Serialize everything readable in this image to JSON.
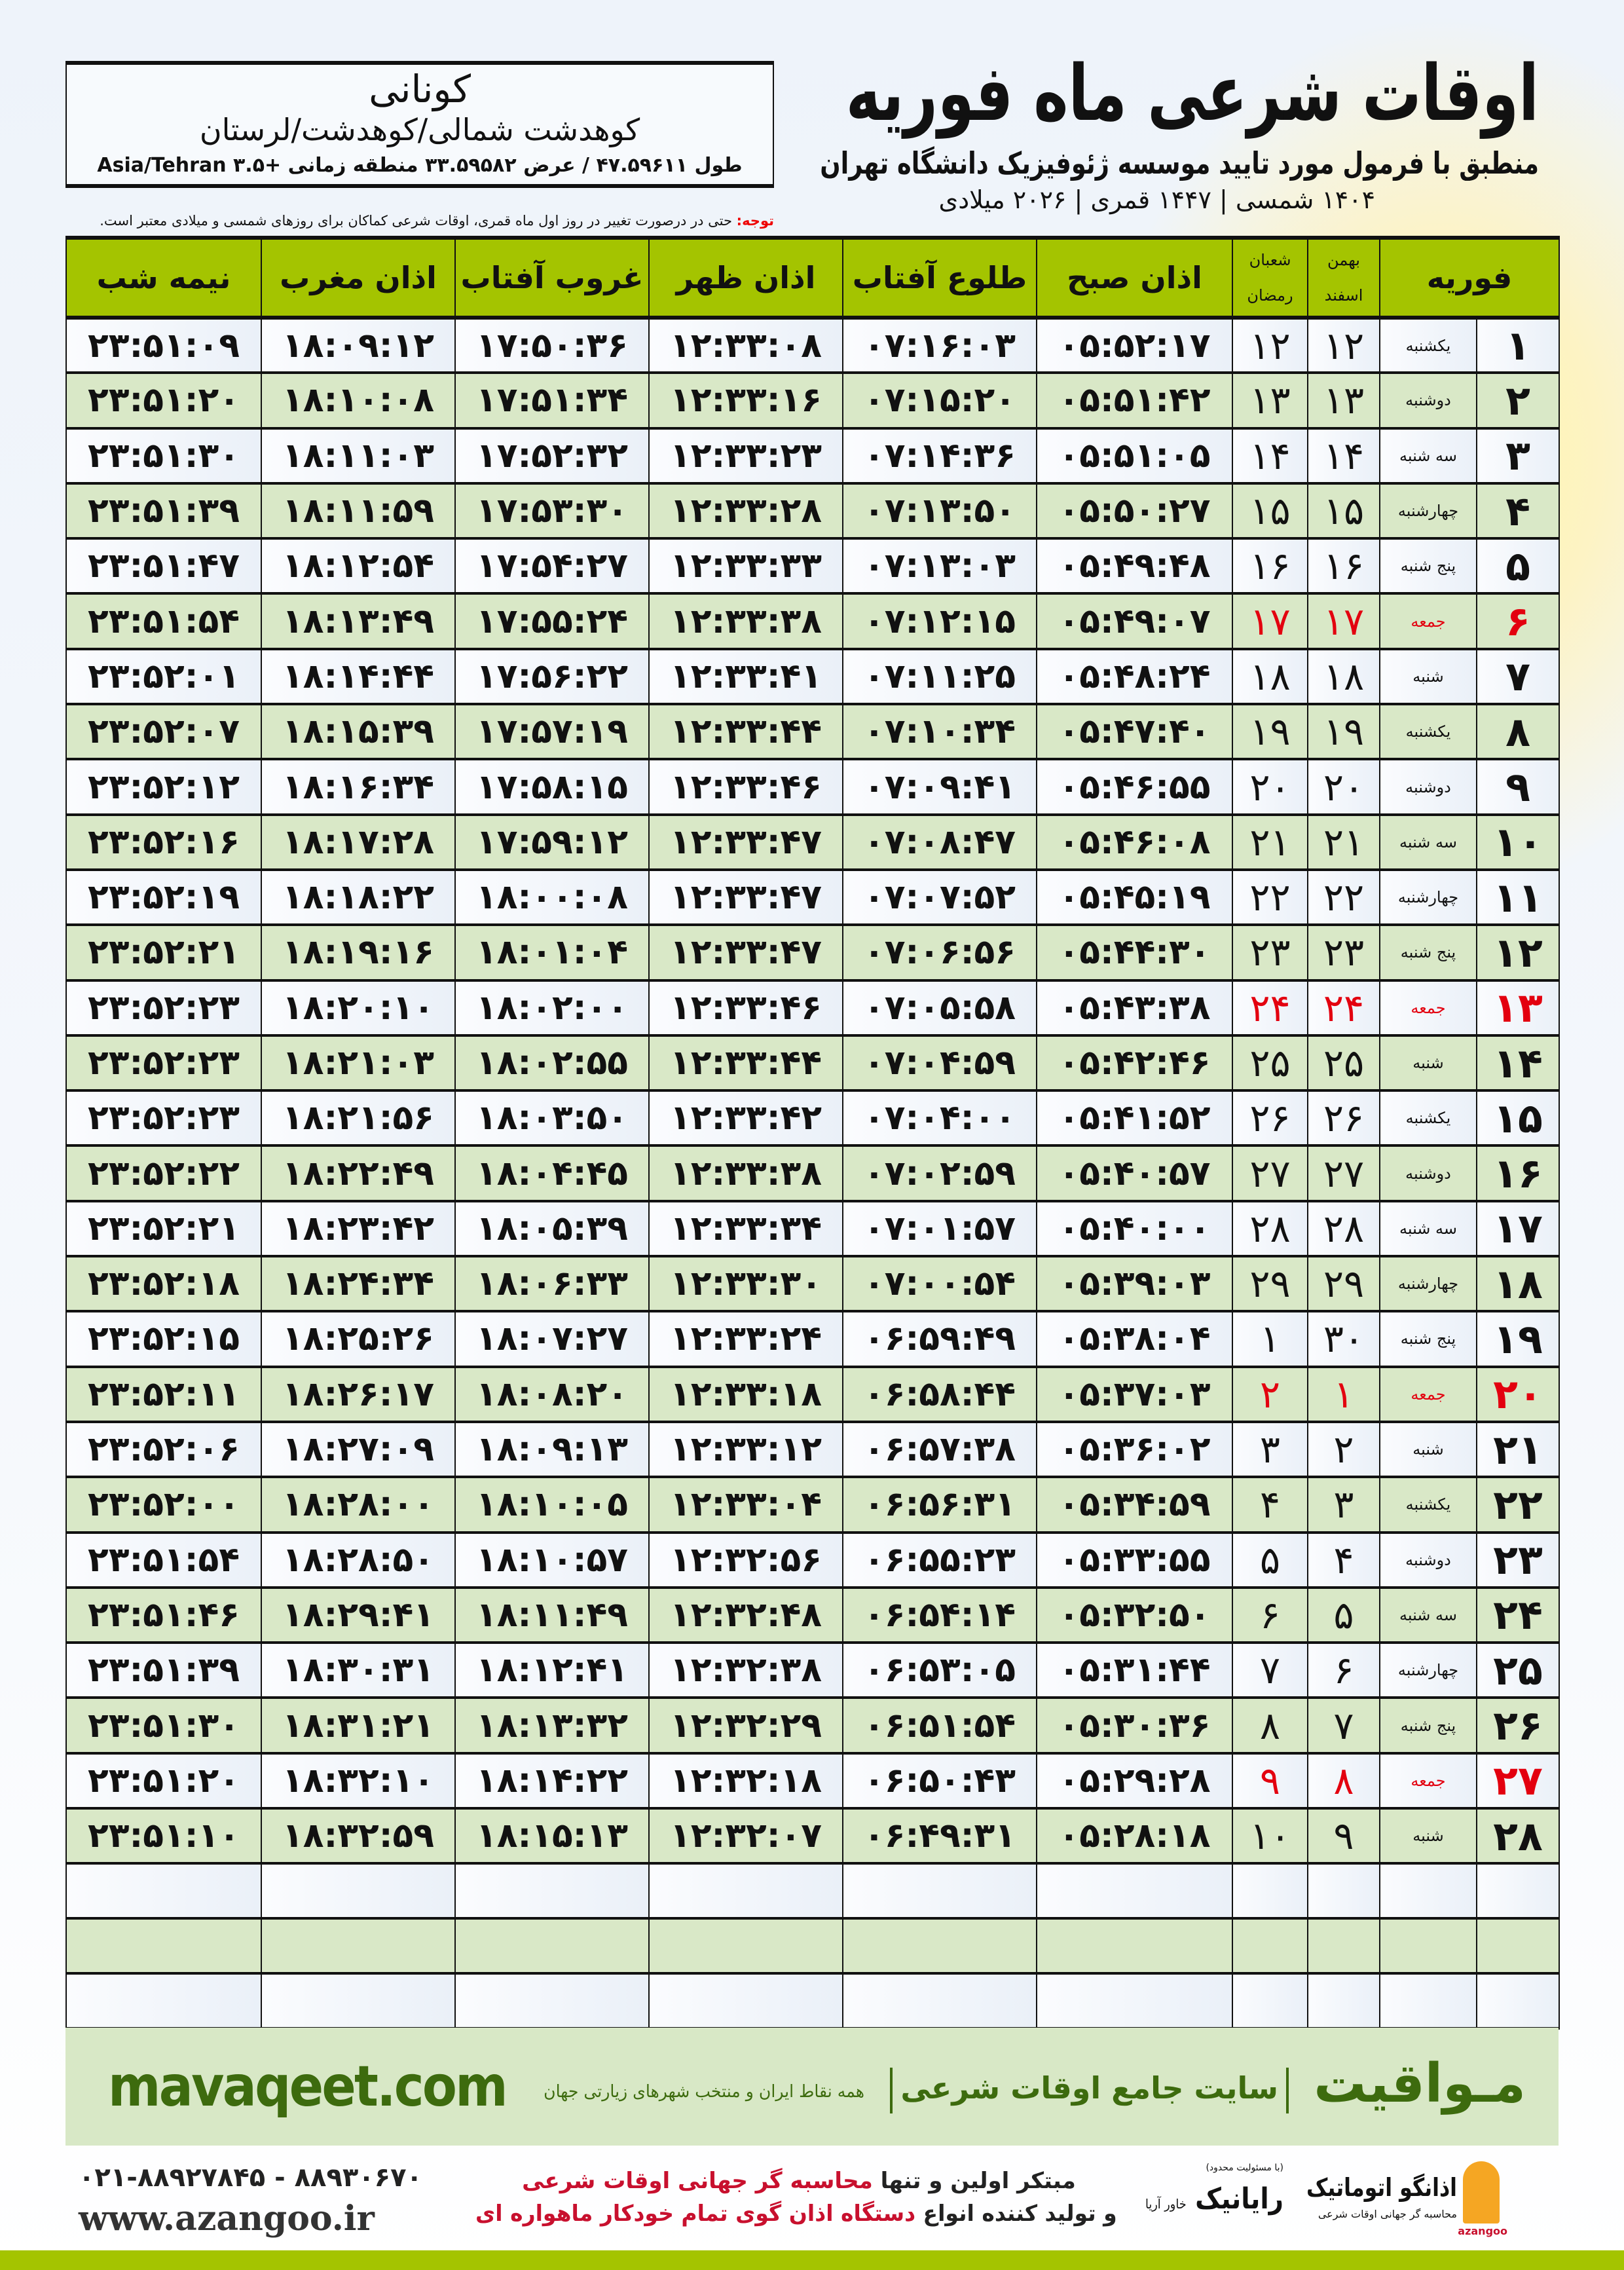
{
  "header": {
    "title": "اوقات شرعی ماه فوریه",
    "subtitle": "منطبق با فرمول مورد تایید موسسه ژئوفیزیک دانشگاه تهران",
    "dates": "۱۴۰۴ شمسی | ۱۴۴۷ قمری | ۲۰۲۶ میلادی"
  },
  "location": {
    "name": "کونانی",
    "path": "کوهدشت شمالی/کوهدشت/لرستان",
    "coords": "طول ۴۷.۵۹۶۱۱ / عرض ۳۳.۵۹۵۸۲ منطقه زمانی +۳.۵ Asia/Tehran"
  },
  "note": {
    "label": "توجه:",
    "text": " حتی در درصورت تغییر در روز اول ماه قمری، اوقات شرعی کماکان برای روزهای شمسی و میلادی معتبر است."
  },
  "colors": {
    "header_green": "#a4c400",
    "row_green": "#d9e8c7",
    "friday_red": "#e3000f",
    "brand_green": "#3d6b0e"
  },
  "table": {
    "headers": {
      "month": "فوریه",
      "solar_top": "بهمن",
      "solar_bottom": "اسفند",
      "lunar_top": "شعبان",
      "lunar_bottom": "رمضان",
      "fajr": "اذان صبح",
      "sunrise": "طلوع آفتاب",
      "dhuhr": "اذان ظهر",
      "sunset": "غروب آفتاب",
      "maghrib": "اذان مغرب",
      "midnight": "نیمه شب"
    },
    "rows": [
      [
        "۱",
        "یکشنبه",
        "۱۲",
        "۱۲",
        "۰۵:۵۲:۱۷",
        "۰۷:۱۶:۰۳",
        "۱۲:۳۳:۰۸",
        "۱۷:۵۰:۳۶",
        "۱۸:۰۹:۱۲",
        "۲۳:۵۱:۰۹"
      ],
      [
        "۲",
        "دوشنبه",
        "۱۳",
        "۱۳",
        "۰۵:۵۱:۴۲",
        "۰۷:۱۵:۲۰",
        "۱۲:۳۳:۱۶",
        "۱۷:۵۱:۳۴",
        "۱۸:۱۰:۰۸",
        "۲۳:۵۱:۲۰"
      ],
      [
        "۳",
        "سه شنبه",
        "۱۴",
        "۱۴",
        "۰۵:۵۱:۰۵",
        "۰۷:۱۴:۳۶",
        "۱۲:۳۳:۲۳",
        "۱۷:۵۲:۳۲",
        "۱۸:۱۱:۰۳",
        "۲۳:۵۱:۳۰"
      ],
      [
        "۴",
        "چهارشنبه",
        "۱۵",
        "۱۵",
        "۰۵:۵۰:۲۷",
        "۰۷:۱۳:۵۰",
        "۱۲:۳۳:۲۸",
        "۱۷:۵۳:۳۰",
        "۱۸:۱۱:۵۹",
        "۲۳:۵۱:۳۹"
      ],
      [
        "۵",
        "پنج شنبه",
        "۱۶",
        "۱۶",
        "۰۵:۴۹:۴۸",
        "۰۷:۱۳:۰۳",
        "۱۲:۳۳:۳۳",
        "۱۷:۵۴:۲۷",
        "۱۸:۱۲:۵۴",
        "۲۳:۵۱:۴۷"
      ],
      [
        "۶",
        "جمعه",
        "۱۷",
        "۱۷",
        "۰۵:۴۹:۰۷",
        "۰۷:۱۲:۱۵",
        "۱۲:۳۳:۳۸",
        "۱۷:۵۵:۲۴",
        "۱۸:۱۳:۴۹",
        "۲۳:۵۱:۵۴"
      ],
      [
        "۷",
        "شنبه",
        "۱۸",
        "۱۸",
        "۰۵:۴۸:۲۴",
        "۰۷:۱۱:۲۵",
        "۱۲:۳۳:۴۱",
        "۱۷:۵۶:۲۲",
        "۱۸:۱۴:۴۴",
        "۲۳:۵۲:۰۱"
      ],
      [
        "۸",
        "یکشنبه",
        "۱۹",
        "۱۹",
        "۰۵:۴۷:۴۰",
        "۰۷:۱۰:۳۴",
        "۱۲:۳۳:۴۴",
        "۱۷:۵۷:۱۹",
        "۱۸:۱۵:۳۹",
        "۲۳:۵۲:۰۷"
      ],
      [
        "۹",
        "دوشنبه",
        "۲۰",
        "۲۰",
        "۰۵:۴۶:۵۵",
        "۰۷:۰۹:۴۱",
        "۱۲:۳۳:۴۶",
        "۱۷:۵۸:۱۵",
        "۱۸:۱۶:۳۴",
        "۲۳:۵۲:۱۲"
      ],
      [
        "۱۰",
        "سه شنبه",
        "۲۱",
        "۲۱",
        "۰۵:۴۶:۰۸",
        "۰۷:۰۸:۴۷",
        "۱۲:۳۳:۴۷",
        "۱۷:۵۹:۱۲",
        "۱۸:۱۷:۲۸",
        "۲۳:۵۲:۱۶"
      ],
      [
        "۱۱",
        "چهارشنبه",
        "۲۲",
        "۲۲",
        "۰۵:۴۵:۱۹",
        "۰۷:۰۷:۵۲",
        "۱۲:۳۳:۴۷",
        "۱۸:۰۰:۰۸",
        "۱۸:۱۸:۲۲",
        "۲۳:۵۲:۱۹"
      ],
      [
        "۱۲",
        "پنج شنبه",
        "۲۳",
        "۲۳",
        "۰۵:۴۴:۳۰",
        "۰۷:۰۶:۵۶",
        "۱۲:۳۳:۴۷",
        "۱۸:۰۱:۰۴",
        "۱۸:۱۹:۱۶",
        "۲۳:۵۲:۲۱"
      ],
      [
        "۱۳",
        "جمعه",
        "۲۴",
        "۲۴",
        "۰۵:۴۳:۳۸",
        "۰۷:۰۵:۵۸",
        "۱۲:۳۳:۴۶",
        "۱۸:۰۲:۰۰",
        "۱۸:۲۰:۱۰",
        "۲۳:۵۲:۲۳"
      ],
      [
        "۱۴",
        "شنبه",
        "۲۵",
        "۲۵",
        "۰۵:۴۲:۴۶",
        "۰۷:۰۴:۵۹",
        "۱۲:۳۳:۴۴",
        "۱۸:۰۲:۵۵",
        "۱۸:۲۱:۰۳",
        "۲۳:۵۲:۲۳"
      ],
      [
        "۱۵",
        "یکشنبه",
        "۲۶",
        "۲۶",
        "۰۵:۴۱:۵۲",
        "۰۷:۰۴:۰۰",
        "۱۲:۳۳:۴۲",
        "۱۸:۰۳:۵۰",
        "۱۸:۲۱:۵۶",
        "۲۳:۵۲:۲۳"
      ],
      [
        "۱۶",
        "دوشنبه",
        "۲۷",
        "۲۷",
        "۰۵:۴۰:۵۷",
        "۰۷:۰۲:۵۹",
        "۱۲:۳۳:۳۸",
        "۱۸:۰۴:۴۵",
        "۱۸:۲۲:۴۹",
        "۲۳:۵۲:۲۲"
      ],
      [
        "۱۷",
        "سه شنبه",
        "۲۸",
        "۲۸",
        "۰۵:۴۰:۰۰",
        "۰۷:۰۱:۵۷",
        "۱۲:۳۳:۳۴",
        "۱۸:۰۵:۳۹",
        "۱۸:۲۳:۴۲",
        "۲۳:۵۲:۲۱"
      ],
      [
        "۱۸",
        "چهارشنبه",
        "۲۹",
        "۲۹",
        "۰۵:۳۹:۰۳",
        "۰۷:۰۰:۵۴",
        "۱۲:۳۳:۳۰",
        "۱۸:۰۶:۳۳",
        "۱۸:۲۴:۳۴",
        "۲۳:۵۲:۱۸"
      ],
      [
        "۱۹",
        "پنج شنبه",
        "۳۰",
        "۱",
        "۰۵:۳۸:۰۴",
        "۰۶:۵۹:۴۹",
        "۱۲:۳۳:۲۴",
        "۱۸:۰۷:۲۷",
        "۱۸:۲۵:۲۶",
        "۲۳:۵۲:۱۵"
      ],
      [
        "۲۰",
        "جمعه",
        "۱",
        "۲",
        "۰۵:۳۷:۰۳",
        "۰۶:۵۸:۴۴",
        "۱۲:۳۳:۱۸",
        "۱۸:۰۸:۲۰",
        "۱۸:۲۶:۱۷",
        "۲۳:۵۲:۱۱"
      ],
      [
        "۲۱",
        "شنبه",
        "۲",
        "۳",
        "۰۵:۳۶:۰۲",
        "۰۶:۵۷:۳۸",
        "۱۲:۳۳:۱۲",
        "۱۸:۰۹:۱۳",
        "۱۸:۲۷:۰۹",
        "۲۳:۵۲:۰۶"
      ],
      [
        "۲۲",
        "یکشنبه",
        "۳",
        "۴",
        "۰۵:۳۴:۵۹",
        "۰۶:۵۶:۳۱",
        "۱۲:۳۳:۰۴",
        "۱۸:۱۰:۰۵",
        "۱۸:۲۸:۰۰",
        "۲۳:۵۲:۰۰"
      ],
      [
        "۲۳",
        "دوشنبه",
        "۴",
        "۵",
        "۰۵:۳۳:۵۵",
        "۰۶:۵۵:۲۳",
        "۱۲:۳۲:۵۶",
        "۱۸:۱۰:۵۷",
        "۱۸:۲۸:۵۰",
        "۲۳:۵۱:۵۴"
      ],
      [
        "۲۴",
        "سه شنبه",
        "۵",
        "۶",
        "۰۵:۳۲:۵۰",
        "۰۶:۵۴:۱۴",
        "۱۲:۳۲:۴۸",
        "۱۸:۱۱:۴۹",
        "۱۸:۲۹:۴۱",
        "۲۳:۵۱:۴۶"
      ],
      [
        "۲۵",
        "چهارشنبه",
        "۶",
        "۷",
        "۰۵:۳۱:۴۴",
        "۰۶:۵۳:۰۵",
        "۱۲:۳۲:۳۸",
        "۱۸:۱۲:۴۱",
        "۱۸:۳۰:۳۱",
        "۲۳:۵۱:۳۹"
      ],
      [
        "۲۶",
        "پنج شنبه",
        "۷",
        "۸",
        "۰۵:۳۰:۳۶",
        "۰۶:۵۱:۵۴",
        "۱۲:۳۲:۲۹",
        "۱۸:۱۳:۳۲",
        "۱۸:۳۱:۲۱",
        "۲۳:۵۱:۳۰"
      ],
      [
        "۲۷",
        "جمعه",
        "۸",
        "۹",
        "۰۵:۲۹:۲۸",
        "۰۶:۵۰:۴۳",
        "۱۲:۳۲:۱۸",
        "۱۸:۱۴:۲۲",
        "۱۸:۳۲:۱۰",
        "۲۳:۵۱:۲۰"
      ],
      [
        "۲۸",
        "شنبه",
        "۹",
        "۱۰",
        "۰۵:۲۸:۱۸",
        "۰۶:۴۹:۳۱",
        "۱۲:۳۲:۰۷",
        "۱۸:۱۵:۱۳",
        "۱۸:۳۲:۵۹",
        "۲۳:۵۱:۱۰"
      ]
    ],
    "friday_label": "جمعه",
    "empty_rows": 3
  },
  "footer": {
    "brand": "مـواقیت",
    "tagline": "سایت جامع اوقات شرعی",
    "sub": "همه نقاط ایران و منتخب شهرهای زیارتی جهان",
    "site": "mavaqeet.com",
    "phone": "۰۲۱-۸۸۹۲۷۸۴۵ - ۸۸۹۳۰۶۷۰",
    "web": "www.azangoo.ir",
    "promo_1a": "مبتکر اولین و تنها ",
    "promo_1b": "محاسبه گر جهانی اوقات شرعی",
    "promo_2a": "و تولید کننده انواع ",
    "promo_2b": "دستگاه اذان گوی تمام خودکار ماهواره ای",
    "logo_rayanik": "رایانیک",
    "logo_rayanik_small": "(با مسئولیت محدود)",
    "logo_rayanik_side": "خاور آریا",
    "logo_azangoo": "اذانگو اتوماتیک",
    "logo_azangoo_sub": "محاسبه گر جهانی اوقات شرعی",
    "logo_azangoo_en": "azangoo"
  }
}
